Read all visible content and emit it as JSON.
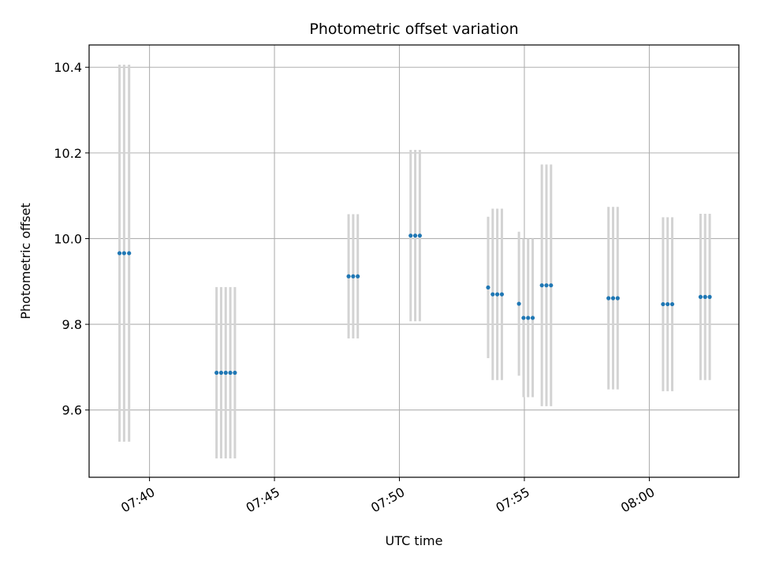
{
  "chart_data": {
    "type": "scatter",
    "title": "Photometric offset variation",
    "xlabel": "UTC time",
    "ylabel": "Photometric offset",
    "x_unit": "UTC time (HH:MM:SS)",
    "xlim": [
      "07:37:35",
      "08:03:35"
    ],
    "ylim": [
      9.443,
      10.452
    ],
    "x_ticks": [
      "07:40",
      "07:45",
      "07:50",
      "07:55",
      "08:00"
    ],
    "y_ticks": [
      9.6,
      9.8,
      10.0,
      10.2,
      10.4
    ],
    "grid": true,
    "marker_color": "#1f77b4",
    "errorbar_color": "#d3d3d3",
    "grid_color": "#b0b0b0",
    "points": [
      {
        "t": "07:38:48",
        "y": 9.966,
        "err": 0.44
      },
      {
        "t": "07:38:59",
        "y": 9.966,
        "err": 0.44
      },
      {
        "t": "07:39:11",
        "y": 9.966,
        "err": 0.44
      },
      {
        "t": "07:42:41",
        "y": 9.687,
        "err": 0.2
      },
      {
        "t": "07:42:52",
        "y": 9.687,
        "err": 0.2
      },
      {
        "t": "07:43:03",
        "y": 9.687,
        "err": 0.2
      },
      {
        "t": "07:43:14",
        "y": 9.687,
        "err": 0.2
      },
      {
        "t": "07:43:25",
        "y": 9.687,
        "err": 0.2
      },
      {
        "t": "07:47:58",
        "y": 9.912,
        "err": 0.145
      },
      {
        "t": "07:48:09",
        "y": 9.912,
        "err": 0.145
      },
      {
        "t": "07:48:20",
        "y": 9.912,
        "err": 0.145
      },
      {
        "t": "07:50:27",
        "y": 10.007,
        "err": 0.2
      },
      {
        "t": "07:50:38",
        "y": 10.007,
        "err": 0.2
      },
      {
        "t": "07:50:49",
        "y": 10.007,
        "err": 0.2
      },
      {
        "t": "07:53:33",
        "y": 9.886,
        "err": 0.165
      },
      {
        "t": "07:53:44",
        "y": 9.87,
        "err": 0.2
      },
      {
        "t": "07:53:55",
        "y": 9.87,
        "err": 0.2
      },
      {
        "t": "07:54:06",
        "y": 9.87,
        "err": 0.2
      },
      {
        "t": "07:54:47",
        "y": 9.848,
        "err": 0.168
      },
      {
        "t": "07:54:58",
        "y": 9.815,
        "err": 0.185
      },
      {
        "t": "07:55:09",
        "y": 9.815,
        "err": 0.185
      },
      {
        "t": "07:55:20",
        "y": 9.815,
        "err": 0.185
      },
      {
        "t": "07:55:42",
        "y": 9.891,
        "err": 0.282
      },
      {
        "t": "07:55:53",
        "y": 9.891,
        "err": 0.282
      },
      {
        "t": "07:56:04",
        "y": 9.891,
        "err": 0.282
      },
      {
        "t": "07:58:22",
        "y": 9.861,
        "err": 0.213
      },
      {
        "t": "07:58:33",
        "y": 9.861,
        "err": 0.213
      },
      {
        "t": "07:58:44",
        "y": 9.861,
        "err": 0.213
      },
      {
        "t": "08:00:33",
        "y": 9.847,
        "err": 0.203
      },
      {
        "t": "08:00:44",
        "y": 9.847,
        "err": 0.203
      },
      {
        "t": "08:00:55",
        "y": 9.847,
        "err": 0.203
      },
      {
        "t": "08:02:03",
        "y": 9.864,
        "err": 0.194
      },
      {
        "t": "08:02:14",
        "y": 9.864,
        "err": 0.194
      },
      {
        "t": "08:02:25",
        "y": 9.864,
        "err": 0.194
      }
    ]
  }
}
